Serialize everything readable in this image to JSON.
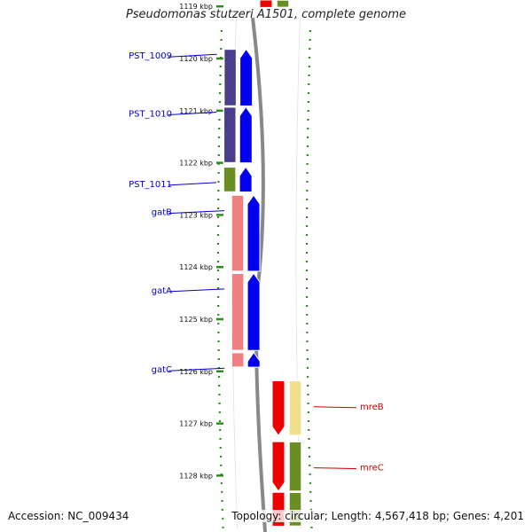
{
  "title": "Pseudomonas stutzeri A1501, complete genome",
  "footer": {
    "accession_label": "Accession:",
    "accession": "NC_009434",
    "topology_label": "Topology:",
    "topology": "circular;",
    "length_label": "Length:",
    "length": "4,567,418 bp;",
    "genes_label": "Genes:",
    "genes": "4,201"
  },
  "colors": {
    "backbone": "#888888",
    "tick_green": "#2e8b1e",
    "forward_gene": "#0000ee",
    "reverse_gene": "#ee0000",
    "left_label": "#0000cc",
    "right_label": "#cc0000",
    "purple_block": "#4a3f8c",
    "olive_block": "#6b8e23",
    "pink_block": "#f08080",
    "khaki_block": "#f0e08c"
  },
  "scale": {
    "unit": "kbp",
    "ticks": [
      "1119 kbp",
      "1120 kbp",
      "1121 kbp",
      "1122 kbp",
      "1123 kbp",
      "1124 kbp",
      "1125 kbp",
      "1126 kbp",
      "1127 kbp",
      "1128 kbp"
    ]
  },
  "left_genes": [
    {
      "label": "PST_1009",
      "start_kbp": 1119.82,
      "end_kbp": 1120.91,
      "strand": "+",
      "category_color": "#4a3f8c"
    },
    {
      "label": "PST_1010",
      "start_kbp": 1120.93,
      "end_kbp": 1122.0,
      "strand": "+",
      "category_color": "#4a3f8c"
    },
    {
      "label": "PST_1011",
      "start_kbp": 1122.08,
      "end_kbp": 1122.56,
      "strand": "+",
      "category_color": "#6b8e23"
    },
    {
      "label": "gatB",
      "start_kbp": 1122.62,
      "end_kbp": 1124.08,
      "strand": "+",
      "category_color": "#f08080"
    },
    {
      "label": "gatA",
      "start_kbp": 1124.12,
      "end_kbp": 1125.6,
      "strand": "+",
      "category_color": "#f08080"
    },
    {
      "label": "gatC",
      "start_kbp": 1125.64,
      "end_kbp": 1125.92,
      "strand": "+",
      "category_color": "#f08080"
    }
  ],
  "right_genes": [
    {
      "label": "mreB",
      "start_kbp": 1126.18,
      "end_kbp": 1127.23,
      "strand": "-",
      "category_color": "#f0e08c"
    },
    {
      "label": "mreC",
      "start_kbp": 1127.35,
      "end_kbp": 1128.3,
      "strand": "-",
      "category_color": "#6b8e23"
    }
  ],
  "partial_genes": [
    {
      "strand": "-",
      "start_kbp": 1118.6,
      "end_kbp": 1119.02,
      "category_color": "#6b8e23"
    },
    {
      "strand": "-",
      "start_kbp": 1128.32,
      "end_kbp": 1128.97,
      "category_color": "#6b8e23"
    }
  ]
}
